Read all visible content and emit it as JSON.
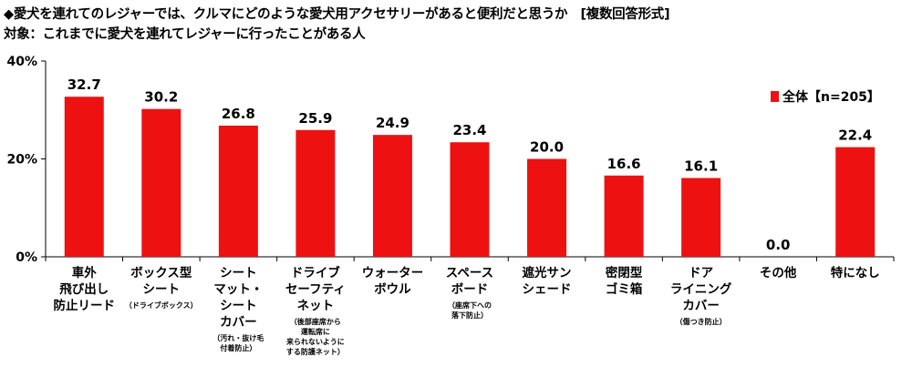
{
  "title": "◆愛犬を連れてのレジャーでは、クルマにどのような愛犬用アクセサリーがあると便利だと思うか　[複数回答形式]",
  "subtitle": "対象：これまでに愛犬を連れてレジャーに行ったことがある人",
  "colors": {
    "bar": "#ee1111",
    "axis": "#000000"
  },
  "chart_data": {
    "type": "bar",
    "categories": [
      {
        "lines": [
          "車外",
          "飛び出し",
          "防止リード"
        ],
        "sub": []
      },
      {
        "lines": [
          "ボックス型",
          "シート"
        ],
        "sub": [
          "（ドライブボックス）"
        ]
      },
      {
        "lines": [
          "シート",
          "マット・",
          "シート",
          "カバー"
        ],
        "sub": [
          "（汚れ・抜け毛",
          "付着防止）"
        ]
      },
      {
        "lines": [
          "ドライブ",
          "セーフティ",
          "ネット"
        ],
        "sub": [
          "（後部座席から",
          "運転席に",
          "来られないように",
          "する防護ネット）"
        ]
      },
      {
        "lines": [
          "ウォーター",
          "ボウル"
        ],
        "sub": []
      },
      {
        "lines": [
          "スペース",
          "ボード"
        ],
        "sub": [
          "（座席下への",
          "落下防止）"
        ]
      },
      {
        "lines": [
          "遮光サン",
          "シェード"
        ],
        "sub": []
      },
      {
        "lines": [
          "密閉型",
          "ゴミ箱"
        ],
        "sub": []
      },
      {
        "lines": [
          "ドア",
          "ライニング",
          "カバー"
        ],
        "sub": [
          "（傷つき防止）"
        ]
      },
      {
        "lines": [
          "その他"
        ],
        "sub": []
      },
      {
        "lines": [
          "特になし"
        ],
        "sub": []
      }
    ],
    "series": [
      {
        "name": "全体【n=205】",
        "values": [
          32.7,
          30.2,
          26.8,
          25.9,
          24.9,
          23.4,
          20.0,
          16.6,
          16.1,
          0.0,
          22.4
        ]
      }
    ],
    "value_labels": [
      "32.7",
      "30.2",
      "26.8",
      "25.9",
      "24.9",
      "23.4",
      "20.0",
      "16.6",
      "16.1",
      "0.0",
      "22.4"
    ],
    "yticks": [
      {
        "value": 0,
        "label": "0%"
      },
      {
        "value": 20,
        "label": "20%"
      },
      {
        "value": 40,
        "label": "40%"
      }
    ],
    "ylim": [
      0,
      40
    ],
    "grid": false,
    "legend_position": "top-right"
  }
}
